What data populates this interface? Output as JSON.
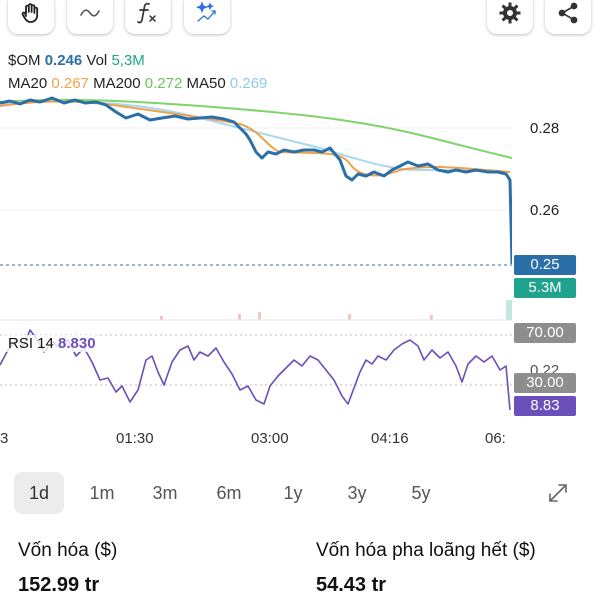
{
  "toolbar": {
    "left_icons": [
      "hand-icon",
      "wave-line-icon",
      "function-icon",
      "sparkle-chart-icon"
    ],
    "right_icons": [
      "gear-icon",
      "share-icon"
    ]
  },
  "legend": {
    "symbol": "$OM",
    "price": "0.246",
    "vol_label": "Vol",
    "vol_value": "5,3M",
    "ma20_label": "MA20",
    "ma20_value": "0.267",
    "ma200_label": "MA200",
    "ma200_value": "0.272",
    "ma50_label": "MA50",
    "ma50_value": "0.269"
  },
  "colors": {
    "price_line": "#2a6fa8",
    "ma20": "#f0a24a",
    "ma200": "#7ed36a",
    "ma50": "#a8d8f0",
    "rsi": "#6b4fbb",
    "vol_tag": "#1fa38c",
    "price_tag": "#2a6fa8",
    "rsi_band_tag": "#8e8e8e"
  },
  "price_axis": [
    "0.28",
    "0.26"
  ],
  "tags": {
    "last_price": "0.25",
    "volume": "5.3M",
    "rsi_upper": "70.00",
    "rsi_lower": "30.00",
    "rsi_value": "8.83",
    "partial_label": "0.22"
  },
  "rsi": {
    "label": "RSI 14",
    "value": "8.830"
  },
  "time_axis": [
    "3",
    "01:30",
    "03:00",
    "04:16",
    "06:"
  ],
  "timeframes": [
    "1d",
    "1m",
    "3m",
    "6m",
    "1y",
    "3y",
    "5y"
  ],
  "active_timeframe": "1d",
  "stats": {
    "market_cap_label": "Vốn hóa ($)",
    "market_cap_value": "152.99 tr",
    "fdv_label": "Vốn hóa pha loãng hết ($)",
    "fdv_value": "54.43 tr"
  }
}
